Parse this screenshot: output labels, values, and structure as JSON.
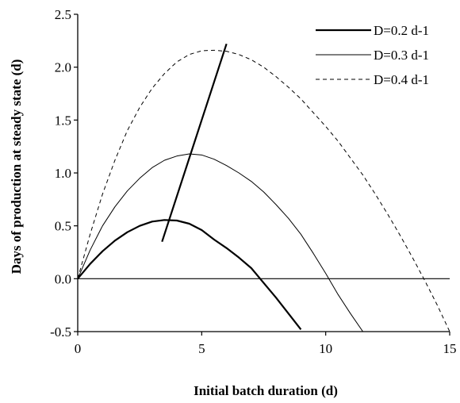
{
  "chart_data": {
    "type": "line",
    "xlabel": "Initial batch duration (d)",
    "ylabel": "Days of production at steady state (d)",
    "xlim": [
      0,
      15
    ],
    "ylim": [
      -0.5,
      2.5
    ],
    "x_ticks": [
      "0",
      "5",
      "10",
      "15"
    ],
    "y_ticks": [
      "-0.5",
      "0.0",
      "0.5",
      "1.0",
      "1.5",
      "2.0",
      "2.5"
    ],
    "grid": false,
    "legend_position": "top-right",
    "series": [
      {
        "name": "D=0.2 d-1",
        "style": "solid-thick",
        "color": "#000000",
        "x": [
          0,
          0.5,
          1,
          1.5,
          2,
          2.5,
          3,
          3.5,
          4,
          4.5,
          5,
          5.5,
          6,
          6.5,
          7,
          7.5,
          8,
          8.5,
          9
        ],
        "y": [
          0,
          0.14,
          0.26,
          0.36,
          0.44,
          0.5,
          0.54,
          0.555,
          0.55,
          0.52,
          0.46,
          0.37,
          0.29,
          0.2,
          0.1,
          -0.04,
          -0.18,
          -0.33,
          -0.48
        ]
      },
      {
        "name": "D=0.3 d-1",
        "style": "solid-thin",
        "color": "#000000",
        "x": [
          0,
          0.5,
          1,
          1.5,
          2,
          2.5,
          3,
          3.5,
          4,
          4.5,
          5,
          5.5,
          6,
          6.5,
          7,
          7.5,
          8,
          8.5,
          9,
          9.5,
          10,
          10.5,
          11,
          11.5
        ],
        "y": [
          0,
          0.27,
          0.5,
          0.68,
          0.83,
          0.95,
          1.05,
          1.12,
          1.16,
          1.18,
          1.17,
          1.13,
          1.07,
          1.0,
          0.92,
          0.82,
          0.7,
          0.57,
          0.42,
          0.24,
          0.05,
          -0.15,
          -0.33,
          -0.5
        ]
      },
      {
        "name": "D=0.4 d-1",
        "style": "dashed",
        "color": "#000000",
        "x": [
          0,
          0.5,
          1,
          1.5,
          2,
          2.5,
          3,
          3.5,
          4,
          4.5,
          5,
          5.5,
          6,
          6.5,
          7,
          7.5,
          8,
          8.5,
          9,
          9.5,
          10,
          10.5,
          11,
          11.5,
          12,
          12.5,
          13,
          13.5,
          14,
          14.5,
          15
        ],
        "y": [
          0,
          0.42,
          0.8,
          1.12,
          1.4,
          1.62,
          1.8,
          1.94,
          2.05,
          2.12,
          2.155,
          2.16,
          2.15,
          2.12,
          2.07,
          2.0,
          1.91,
          1.81,
          1.7,
          1.57,
          1.44,
          1.3,
          1.14,
          0.98,
          0.8,
          0.61,
          0.41,
          0.2,
          -0.02,
          -0.25,
          -0.5
        ]
      },
      {
        "style": "solid-thick",
        "color": "#000000",
        "x": [
          3.4,
          6.0
        ],
        "y": [
          0.35,
          2.22
        ]
      }
    ]
  }
}
